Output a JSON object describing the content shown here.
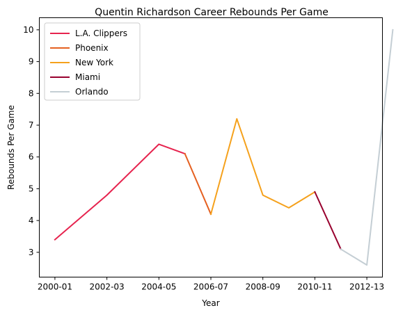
{
  "chart_data": {
    "type": "line",
    "title": "Quentin Richardson Career Rebounds Per Game",
    "xlabel": "Year",
    "ylabel": "Rebounds Per Game",
    "x_ticks": [
      "2000-01",
      "2002-03",
      "2004-05",
      "2006-07",
      "2008-09",
      "2010-11",
      "2012-13"
    ],
    "y_ticks": [
      "3",
      "4",
      "5",
      "6",
      "7",
      "8",
      "9",
      "10"
    ],
    "ylim": [
      2.22,
      10.38
    ],
    "xlim": [
      -0.6,
      12.6
    ],
    "grid": false,
    "legend_position": "top-left",
    "series": [
      {
        "name": "L.A. Clippers",
        "color": "#e6234e",
        "x": [
          0,
          2,
          4,
          5
        ],
        "values": [
          3.4,
          4.8,
          6.4,
          6.1
        ]
      },
      {
        "name": "Phoenix",
        "color": "#e56020",
        "x": [
          5,
          6
        ],
        "values": [
          6.1,
          4.2
        ]
      },
      {
        "name": "New York",
        "color": "#f5a11c",
        "x": [
          6,
          7,
          8,
          9,
          10
        ],
        "values": [
          4.2,
          7.2,
          4.8,
          4.4,
          4.9
        ]
      },
      {
        "name": "Miami",
        "color": "#98002e",
        "x": [
          10,
          11
        ],
        "values": [
          4.9,
          3.1
        ]
      },
      {
        "name": "Orlando",
        "color": "#c4ced4",
        "x": [
          11,
          12,
          13
        ],
        "values": [
          3.1,
          2.6,
          10.0
        ]
      }
    ]
  }
}
